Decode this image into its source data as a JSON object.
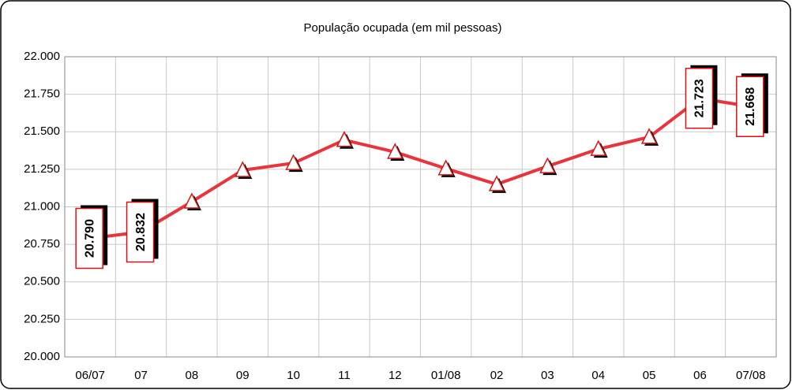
{
  "chart_data": {
    "type": "line",
    "title": "População ocupada (em mil pessoas)",
    "categories": [
      "06/07",
      "07",
      "08",
      "09",
      "10",
      "11",
      "12",
      "01/08",
      "02",
      "03",
      "04",
      "05",
      "06",
      "07/08"
    ],
    "series": [
      {
        "color": "#e8343a",
        "values": [
          20790,
          20832,
          21034,
          21244,
          21291,
          21445,
          21365,
          21255,
          21150,
          21270,
          21385,
          21465,
          21723,
          21668
        ],
        "value_labels": [
          "20.790",
          "20.832",
          null,
          null,
          null,
          null,
          null,
          null,
          null,
          null,
          null,
          null,
          "21.723",
          "21.668"
        ]
      }
    ],
    "ylim": [
      20000,
      22000
    ],
    "yticks": [
      {
        "value": 20000,
        "label": "20.000"
      },
      {
        "value": 20250,
        "label": "20.250"
      },
      {
        "value": 20500,
        "label": "20.500"
      },
      {
        "value": 20750,
        "label": "20.750"
      },
      {
        "value": 21000,
        "label": "21.000"
      },
      {
        "value": 21250,
        "label": "21.250"
      },
      {
        "value": 21500,
        "label": "21.500"
      },
      {
        "value": 21750,
        "label": "21.750"
      },
      {
        "value": 22000,
        "label": "22.000"
      }
    ],
    "grid": true
  }
}
